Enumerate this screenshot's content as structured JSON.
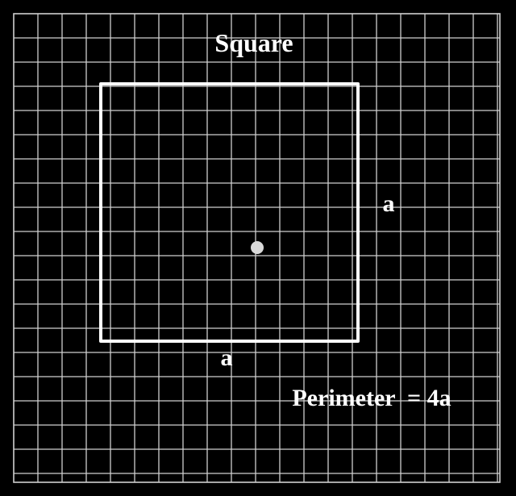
{
  "title": "Square",
  "side_right_label": "a",
  "side_bottom_label": "a",
  "formula": "Perimeter  = 4a",
  "colors": {
    "background": "#000000",
    "grid": "#cfcfcf",
    "shape": "#ffffff",
    "center_point": "#d9d9d9",
    "text": "#ffffff"
  }
}
